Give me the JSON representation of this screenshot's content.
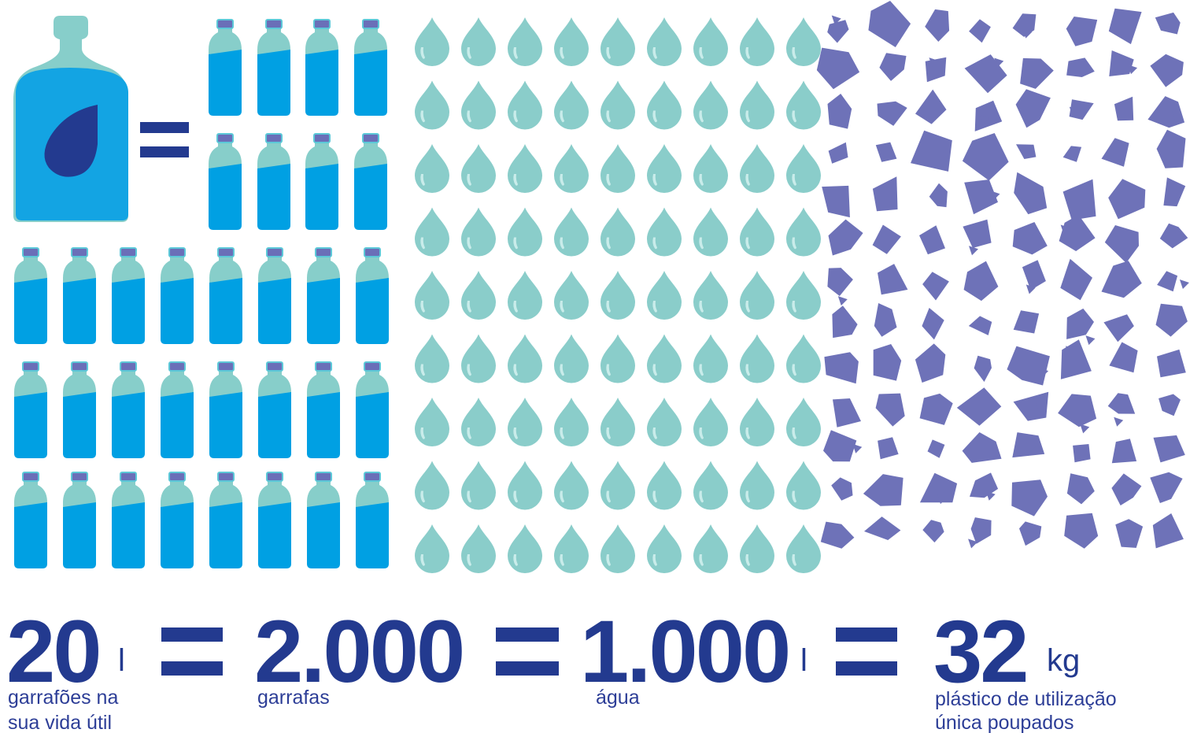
{
  "stats": [
    {
      "number": "20",
      "unit": "l",
      "caption": [
        "garrafões na",
        "sua vida útil"
      ]
    },
    {
      "number": "2.000",
      "caption": [
        "garrafas"
      ]
    },
    {
      "number": "1.000",
      "unit": "l",
      "caption": [
        "água"
      ]
    },
    {
      "number": "32",
      "unit": "kg",
      "caption": [
        "plástico de utilização",
        "única poupados"
      ]
    }
  ]
}
